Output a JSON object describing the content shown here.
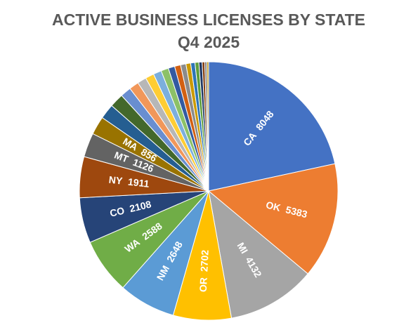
{
  "chart_data": {
    "type": "pie",
    "title": "ACTIVE BUSINESS LICENSES BY STATE",
    "subtitle": "Q4 2025",
    "categories": [
      "CA",
      "OK",
      "MI",
      "OR",
      "NM",
      "WA",
      "CO",
      "NY",
      "MT",
      "MA",
      null,
      null,
      null,
      null,
      null,
      null,
      null,
      null,
      null,
      null,
      null,
      null,
      null,
      null,
      null,
      null,
      null,
      null
    ],
    "values": [
      8048,
      5383,
      4132,
      2702,
      2648,
      2588,
      2108,
      1911,
      1126,
      856,
      700,
      650,
      500,
      450,
      420,
      400,
      380,
      350,
      300,
      280,
      250,
      220,
      200,
      180,
      150,
      120,
      100,
      80
    ],
    "colors": [
      "#4472C4",
      "#ED7D31",
      "#A5A5A5",
      "#FFC000",
      "#5B9BD5",
      "#70AD47",
      "#264478",
      "#9E480E",
      "#636363",
      "#997300",
      "#255E91",
      "#43682B",
      "#698ED0",
      "#F1975A",
      "#B7B7B7",
      "#FFCD33",
      "#7CAFDD",
      "#8CC168",
      "#335AA1",
      "#D26012",
      "#8B8B8B",
      "#CC9A00",
      "#2E75B6",
      "#5E9E3B",
      "#1F3864",
      "#843C0C",
      "#7F7F7F",
      "#BF9000"
    ]
  }
}
